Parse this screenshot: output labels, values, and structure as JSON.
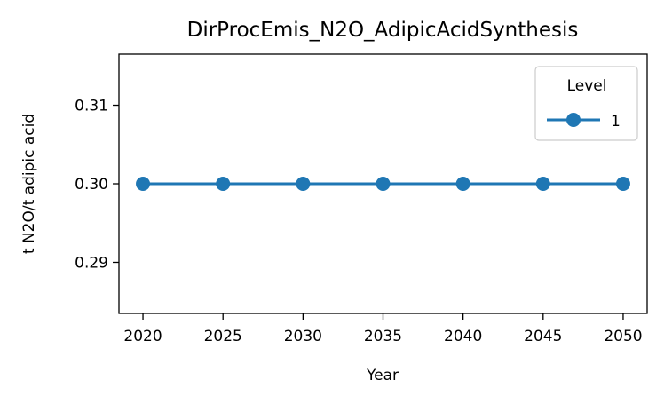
{
  "chart_data": {
    "type": "line",
    "title": "DirProcEmis_N2O_AdipicAcidSynthesis",
    "xlabel": "Year",
    "ylabel": "t N2O/t adipic acid",
    "x": [
      2020,
      2025,
      2030,
      2035,
      2040,
      2045,
      2050
    ],
    "xticks": [
      "2020",
      "2025",
      "2030",
      "2035",
      "2040",
      "2045",
      "2050"
    ],
    "yticks": [
      "0.29",
      "0.30",
      "0.31"
    ],
    "ytick_values": [
      0.29,
      0.3,
      0.31
    ],
    "xlim": [
      2018.5,
      2051.5
    ],
    "ylim": [
      0.2835,
      0.3165
    ],
    "grid": false,
    "legend": {
      "title": "Level",
      "placement": "top-right"
    },
    "series": [
      {
        "name": "1",
        "color": "#1f77b4",
        "values": [
          0.3,
          0.3,
          0.3,
          0.3,
          0.3,
          0.3,
          0.3
        ]
      }
    ]
  }
}
